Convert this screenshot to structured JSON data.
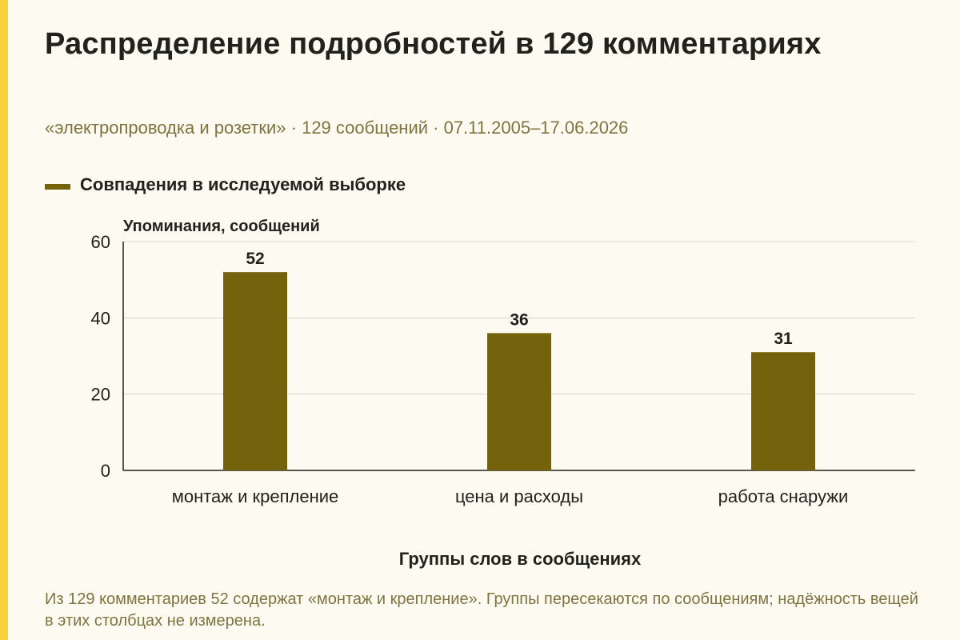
{
  "page": {
    "title": "Распределение подробностей в 129 комментариях",
    "subtitle": "«электропроводка и розетки» · 129 сообщений · 07.11.2005–17.06.2026",
    "footnote": "Из 129 комментариев 52 содержат «монтаж и крепление». Группы пересекаются по сообщениям; надёжность вещей в этих столбцах не измерена."
  },
  "colors": {
    "background": "#fdfbf1",
    "accent_stripe": "#f6d23c",
    "bar": "#74620c",
    "text": "#22221c",
    "muted_text": "#7d7440",
    "grid": "#d9d6c6",
    "axis": "#22221c"
  },
  "chart_data": {
    "type": "bar",
    "categories": [
      "монтаж и крепление",
      "цена и расходы",
      "работа снаружи"
    ],
    "series": [
      {
        "name": "Совпадения в исследуемой выборке",
        "values": [
          52,
          36,
          31
        ]
      }
    ],
    "data_labels": [
      "52",
      "36",
      "31"
    ],
    "ylabel": "Упоминания, сообщений",
    "xlabel": "Группы слов в сообщениях",
    "ylim": [
      0,
      60
    ],
    "yticks": [
      0,
      20,
      40,
      60
    ],
    "grid": true,
    "legend_position": "top-left"
  }
}
